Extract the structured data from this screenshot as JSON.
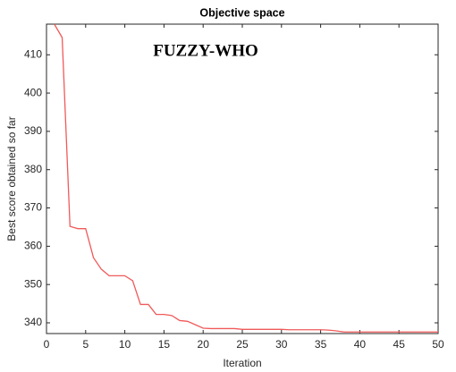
{
  "chart_data": {
    "type": "line",
    "title": "Objective space",
    "annotation": "FUZZY-WHO",
    "xlabel": "Iteration",
    "ylabel": "Best score obtained so far",
    "x": [
      1,
      2,
      3,
      4,
      5,
      6,
      7,
      8,
      9,
      10,
      11,
      12,
      13,
      14,
      15,
      16,
      17,
      18,
      19,
      20,
      21,
      22,
      23,
      24,
      25,
      26,
      27,
      28,
      29,
      30,
      31,
      32,
      33,
      34,
      35,
      36,
      37,
      38,
      39,
      40,
      41,
      42,
      43,
      44,
      45,
      46,
      47,
      48,
      49,
      50
    ],
    "series": [
      {
        "name": "FUZZY-WHO",
        "color": "#f05a5a",
        "values": [
          418,
          414.5,
          365.2,
          364.6,
          364.6,
          357,
          354,
          352.3,
          352.3,
          352.3,
          351,
          344.8,
          344.8,
          342.2,
          342.2,
          341.9,
          340.6,
          340.4,
          339.5,
          338.6,
          338.5,
          338.5,
          338.5,
          338.5,
          338.3,
          338.3,
          338.3,
          338.3,
          338.3,
          338.3,
          338.2,
          338.2,
          338.2,
          338.2,
          338.2,
          338.1,
          337.9,
          337.6,
          337.6,
          337.6,
          337.6,
          337.6,
          337.6,
          337.6,
          337.6,
          337.6,
          337.6,
          337.6,
          337.6,
          337.6
        ]
      }
    ],
    "xlim": [
      0,
      50
    ],
    "xticks": [
      0,
      5,
      10,
      15,
      20,
      25,
      30,
      35,
      40,
      45,
      50
    ],
    "ylim": [
      337.2,
      418
    ],
    "yticks": [
      340,
      350,
      360,
      370,
      380,
      390,
      400,
      410
    ]
  }
}
